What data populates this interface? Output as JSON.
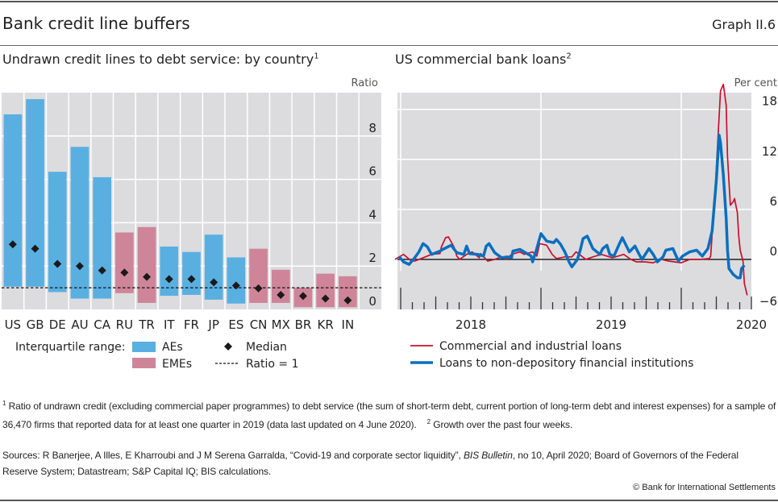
{
  "header": {
    "title": "Bank credit line buffers",
    "graph_number": "Graph II.6"
  },
  "colors": {
    "aes": "#5aafe1",
    "emes": "#cf8599",
    "median": "#1a1a1a",
    "cil": "#c8102e",
    "nondep": "#0a6fbf",
    "plot_bg": "#dcdcde"
  },
  "chart_data": [
    {
      "type": "bar",
      "subtype": "floating-range-with-markers",
      "title": "Undrawn credit lines to debt service: by country",
      "title_footnote": "1",
      "ylabel": "Ratio",
      "ylim": [
        0,
        10
      ],
      "yticks": [
        0,
        2,
        4,
        6,
        8
      ],
      "grid": true,
      "categories": [
        "US",
        "GB",
        "DE",
        "AU",
        "CA",
        "RU",
        "TR",
        "IT",
        "FR",
        "JP",
        "ES",
        "CN",
        "MX",
        "BR",
        "KR",
        "IN"
      ],
      "group": [
        "AEs",
        "AEs",
        "AEs",
        "AEs",
        "AEs",
        "EMEs",
        "EMEs",
        "AEs",
        "AEs",
        "AEs",
        "AEs",
        "EMEs",
        "EMEs",
        "EMEs",
        "EMEs",
        "EMEs"
      ],
      "q1": [
        1.05,
        1.05,
        0.8,
        0.5,
        0.5,
        0.75,
        0.3,
        0.63,
        0.67,
        0.45,
        0.27,
        0.3,
        0.3,
        0.1,
        0.1,
        0.1
      ],
      "q3": [
        9.0,
        9.7,
        6.35,
        7.5,
        6.1,
        3.55,
        3.8,
        2.9,
        2.65,
        3.45,
        2.4,
        2.8,
        1.83,
        1.0,
        1.65,
        1.53
      ],
      "median": [
        3.0,
        2.8,
        2.1,
        2.0,
        1.8,
        1.7,
        1.5,
        1.4,
        1.4,
        1.25,
        1.1,
        0.97,
        0.67,
        0.62,
        0.5,
        0.42
      ],
      "reference_line": 1,
      "legend": {
        "range_label": "Interquartile range:",
        "aes": "AEs",
        "emes": "EMEs",
        "median": "Median",
        "ratio": "Ratio = 1"
      }
    },
    {
      "type": "line",
      "title": "US commercial bank loans",
      "title_footnote": "2",
      "ylabel": "Per cent",
      "ylim": [
        -6,
        20
      ],
      "yticks": [
        -6,
        0,
        6,
        12,
        18
      ],
      "xlim": [
        2017.977,
        2020.5
      ],
      "xtick_labels": [
        "2018",
        "2019",
        "2020"
      ],
      "grid": true,
      "legend_position": "bottom-left",
      "series": [
        {
          "name": "Commercial and industrial loans",
          "color": "#c8102e",
          "x": [
            2017.96,
            2018.02,
            2018.07,
            2018.1,
            2018.16,
            2018.22,
            2018.28,
            2018.29,
            2018.32,
            2018.34,
            2018.38,
            2018.4,
            2018.42,
            2018.47,
            2018.51,
            2018.56,
            2018.57,
            2018.62,
            2018.67,
            2018.72,
            2018.75,
            2018.79,
            2018.85,
            2018.88,
            2018.94,
            2018.97,
            2018.99,
            2019.04,
            2019.08,
            2019.11,
            2019.17,
            2019.22,
            2019.25,
            2019.32,
            2019.37,
            2019.43,
            2019.51,
            2019.59,
            2019.64,
            2019.68,
            2019.74,
            2019.8,
            2019.86,
            2019.91,
            2020.0,
            2020.06,
            2020.14,
            2020.2,
            2020.21,
            2020.22,
            2020.24,
            2020.26,
            2020.28,
            2020.3,
            2020.32,
            2020.33,
            2020.35,
            2020.37,
            2020.38,
            2020.4,
            2020.41,
            2020.42,
            2020.44,
            2020.45,
            2020.47
          ],
          "y": [
            0,
            0.6,
            -0.1,
            -0.2,
            0.2,
            0.6,
            0.7,
            1.5,
            2.6,
            2.7,
            1.5,
            0.4,
            0,
            0.6,
            0.9,
            0.2,
            0.7,
            -0.2,
            0,
            0.3,
            0,
            0.6,
            0.9,
            0.6,
            0.9,
            0.4,
            1.9,
            1.7,
            0.6,
            0.1,
            0.3,
            0.3,
            0.9,
            0,
            0.3,
            0.6,
            0.2,
            0.6,
            0,
            -0.3,
            -0.3,
            -0.4,
            0,
            -0.2,
            -0.4,
            0,
            0,
            0.1,
            0.4,
            3.0,
            7.8,
            14.0,
            20.2,
            21.0,
            18.5,
            12.3,
            6.5,
            6.9,
            7.3,
            5.6,
            2.8,
            1.1,
            -0.2,
            -2.9,
            -4.3
          ]
        },
        {
          "name": "Loans to non-depository financial institutions",
          "color": "#0a6fbf",
          "x": [
            2017.99,
            2018.02,
            2018.06,
            2018.1,
            2018.13,
            2018.16,
            2018.19,
            2018.22,
            2018.28,
            2018.3,
            2018.36,
            2018.4,
            2018.45,
            2018.47,
            2018.49,
            2018.55,
            2018.59,
            2018.61,
            2018.63,
            2018.67,
            2018.72,
            2018.76,
            2018.79,
            2018.8,
            2018.85,
            2018.89,
            2018.93,
            2018.94,
            2018.97,
            2019.0,
            2019.04,
            2019.09,
            2019.11,
            2019.14,
            2019.17,
            2019.2,
            2019.22,
            2019.26,
            2019.28,
            2019.3,
            2019.33,
            2019.37,
            2019.42,
            2019.44,
            2019.47,
            2019.49,
            2019.52,
            2019.56,
            2019.58,
            2019.63,
            2019.67,
            2019.7,
            2019.72,
            2019.77,
            2019.8,
            2019.83,
            2019.87,
            2019.89,
            2019.94,
            2019.98,
            2020.01,
            2020.06,
            2020.11,
            2020.15,
            2020.19,
            2020.22,
            2020.25,
            2020.27,
            2020.28,
            2020.3,
            2020.32,
            2020.33,
            2020.34,
            2020.37,
            2020.4,
            2020.42,
            2020.43,
            2020.45
          ],
          "y": [
            0.3,
            -0.3,
            -0.6,
            0.2,
            0.9,
            1.9,
            1.5,
            0.6,
            1.0,
            1.2,
            1.7,
            0.8,
            0.6,
            1.6,
            0.7,
            0.6,
            0.4,
            1.6,
            1.9,
            0.8,
            0.2,
            0.3,
            0.2,
            1.0,
            1.2,
            0.8,
            0.4,
            -0.3,
            1.3,
            3.1,
            2.2,
            2.0,
            2.4,
            1.8,
            0.9,
            -0.3,
            -0.9,
            0.0,
            1.1,
            2.5,
            2.8,
            1.3,
            0.6,
            1.3,
            1.7,
            0.6,
            0.4,
            1.9,
            2.6,
            0.9,
            1.6,
            0.6,
            0.0,
            1.3,
            0.6,
            -0.3,
            0.3,
            1.1,
            1.3,
            -0.2,
            0.4,
            0.9,
            1.1,
            0.4,
            1.3,
            3.4,
            9.5,
            14.9,
            14.0,
            10.1,
            5.0,
            1.1,
            -1.1,
            -1.8,
            -2.2,
            -2.2,
            -1.1,
            -0.7
          ]
        }
      ]
    }
  ],
  "footnotes": {
    "note1_marker": "1",
    "note1": "Ratio of undrawn credit (excluding commercial paper programmes) to debt service (the sum of short-term debt, current portion of long-term debt and interest expenses) for a sample of 36,470 firms that reported data for at least one quarter in 2019 (data last updated on 4 June 2020).",
    "note2_marker": "2",
    "note2": "Growth over the past four weeks."
  },
  "sources": {
    "prefix": "Sources: R Banerjee, A Illes, E Kharroubi and J M Serena Garralda, “Covid-19 and corporate sector liquidity”, ",
    "italic": "BIS Bulletin",
    "suffix": ", no 10, April 2020; Board of Governors of the Federal Reserve System; Datastream; S&P Capital IQ; BIS calculations."
  },
  "copyright": "© Bank for International Settlements"
}
